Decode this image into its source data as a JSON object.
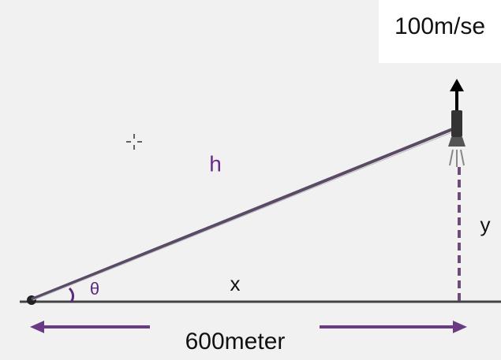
{
  "velocity_label": "100m/se",
  "labels": {
    "hypotenuse": "h",
    "base": "x",
    "angle": "θ",
    "height": "y"
  },
  "distance_label": "600meter"
}
